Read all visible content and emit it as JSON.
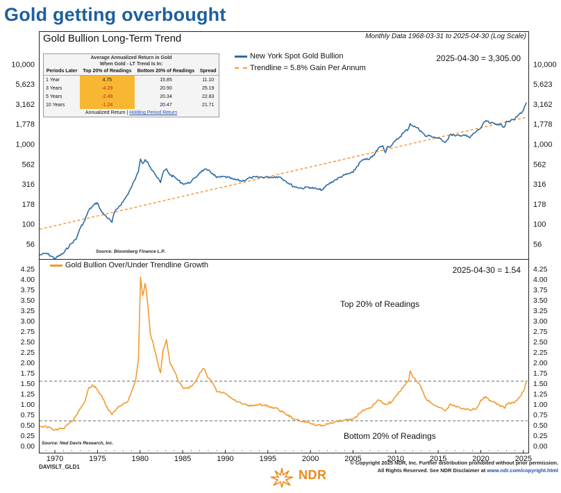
{
  "headline": "Gold getting overbought",
  "panel": {
    "title": "Gold Bullion Long-Term Trend",
    "subtitle": "Monthly Data 1968-03-31 to 2025-04-30 (Log Scale)"
  },
  "table": {
    "caption_line1": "Average Annualized Return in Gold",
    "caption_line2": "When Gold - LT Trend Is In:",
    "headers": [
      "Periods Later",
      "Top 20% of Readings",
      "Bottom 20% of Readings",
      "Spread"
    ],
    "rows": [
      {
        "period": "1 Year",
        "top": "4.75",
        "bottom": "15.85",
        "spread": "11.10"
      },
      {
        "period": "3 Years",
        "top": "-4.29",
        "bottom": "20.90",
        "spread": "25.19"
      },
      {
        "period": "5 Years",
        "top": "-2.49",
        "bottom": "20.34",
        "spread": "22.83"
      },
      {
        "period": "10 Years",
        "top": "-1.24",
        "bottom": "20.47",
        "spread": "21.71"
      }
    ],
    "footer_a": "Annualized Return",
    "footer_sep": "|",
    "footer_b": "Holding Period Return"
  },
  "colors": {
    "gold_line": "#2a6aa3",
    "trend": "#f29a3d",
    "osc": "#f2992e",
    "highlight": "#f7b733",
    "headline": "#1e5f9e"
  },
  "chart_data": [
    {
      "type": "line",
      "title": "Gold Bullion Long-Term Trend",
      "scale": "log",
      "xlim": [
        1968.2,
        2025.5
      ],
      "ylim": [
        38,
        15000
      ],
      "ytick_values": [
        56,
        100,
        178,
        316,
        562,
        1000,
        1778,
        3162,
        5623,
        10000
      ],
      "ytick_labels": [
        "56",
        "100",
        "178",
        "316",
        "562",
        "1,000",
        "1,778",
        "3,162",
        "5,623",
        "10,000"
      ],
      "legend": [
        "New York Spot Gold Bullion",
        "Trendline = 5.8% Gain Per Annum"
      ],
      "readout": "2025-04-30 = 3,305.00",
      "source": "Source: Bloomberg Finance L.P.",
      "series": [
        {
          "name": "New York Spot Gold Bullion",
          "x": [
            1968.2,
            1969,
            1970,
            1971,
            1972,
            1972.5,
            1973,
            1973.5,
            1974,
            1974.5,
            1974.95,
            1975.5,
            1976,
            1976.7,
            1977,
            1977.5,
            1978,
            1978.5,
            1979,
            1979.5,
            1979.8,
            1980.05,
            1980.3,
            1980.6,
            1980.9,
            1981.2,
            1981.6,
            1982,
            1982.4,
            1982.7,
            1983.1,
            1983.5,
            1984,
            1984.5,
            1985,
            1985.5,
            1986,
            1986.5,
            1987,
            1987.5,
            1987.9,
            1988.5,
            1989,
            1990,
            1991,
            1992,
            1993,
            1994,
            1995,
            1996,
            1996.5,
            1997,
            1998,
            1999,
            1999.8,
            2000,
            2001,
            2001.5,
            2002,
            2003,
            2004,
            2005,
            2006,
            2006.5,
            2007,
            2007.5,
            2008,
            2008.5,
            2008.8,
            2009,
            2009.5,
            2010,
            2010.5,
            2011,
            2011.5,
            2011.7,
            2012,
            2012.5,
            2013,
            2013.5,
            2014,
            2015,
            2015.9,
            2016.5,
            2017,
            2018,
            2018.7,
            2019,
            2019.5,
            2020,
            2020.6,
            2021,
            2022,
            2022.8,
            2023,
            2023.5,
            2024,
            2024.5,
            2025,
            2025.33
          ],
          "values": [
            41,
            43,
            37,
            43,
            58,
            65,
            90,
            110,
            150,
            170,
            185,
            140,
            125,
            105,
            140,
            165,
            190,
            230,
            290,
            380,
            450,
            650,
            570,
            640,
            600,
            510,
            450,
            380,
            330,
            440,
            490,
            410,
            390,
            350,
            320,
            320,
            340,
            380,
            440,
            480,
            470,
            430,
            380,
            390,
            360,
            345,
            380,
            385,
            385,
            390,
            385,
            350,
            295,
            280,
            290,
            285,
            270,
            270,
            310,
            360,
            410,
            440,
            620,
            640,
            660,
            730,
            900,
            950,
            780,
            920,
            950,
            1100,
            1230,
            1410,
            1550,
            1800,
            1690,
            1600,
            1450,
            1250,
            1270,
            1180,
            1060,
            1330,
            1260,
            1300,
            1200,
            1300,
            1450,
            1590,
            1970,
            1830,
            1780,
            1650,
            1930,
            1950,
            2060,
            2350,
            2630,
            3305
          ]
        },
        {
          "name": "Trendline = 5.8% Gain Per Annum",
          "x": [
            1968.2,
            2025.33
          ],
          "values": [
            86,
            2160
          ]
        }
      ]
    },
    {
      "type": "line",
      "title": "Gold Bullion Over/Under Trendline Growth",
      "xlim": [
        1968.2,
        2025.5
      ],
      "ylim": [
        -0.05,
        4.35
      ],
      "ytick_values": [
        0,
        0.25,
        0.5,
        0.75,
        1,
        1.25,
        1.5,
        1.75,
        2,
        2.25,
        2.5,
        2.75,
        3,
        3.25,
        3.5,
        3.75,
        4,
        4.25
      ],
      "ytick_labels": [
        "0.00",
        "0.25",
        "0.50",
        "0.75",
        "1.00",
        "1.25",
        "1.50",
        "1.75",
        "2.00",
        "2.25",
        "2.50",
        "2.75",
        "3.00",
        "3.25",
        "3.50",
        "3.75",
        "4.00",
        "4.25"
      ],
      "xtick_values": [
        1970,
        1975,
        1980,
        1985,
        1990,
        1995,
        2000,
        2005,
        2010,
        2015,
        2020,
        2025
      ],
      "xtick_labels": [
        "1970",
        "1975",
        "1980",
        "1985",
        "1990",
        "1995",
        "2000",
        "2005",
        "2010",
        "2015",
        "2020",
        "2025"
      ],
      "reference_lines": [
        1.55,
        0.6
      ],
      "annotations": {
        "top": "Top 20% of Readings",
        "bottom": "Bottom 20% of Readings"
      },
      "legend": [
        "Gold Bullion Over/Under Trendline Growth"
      ],
      "readout": "2025-04-30 = 1.54",
      "source": "Source: Ned Davis Research, Inc.",
      "series": [
        {
          "name": "Gold Bullion Over/Under Trendline Growth",
          "x": [
            1968.2,
            1969,
            1970,
            1971,
            1972,
            1973,
            1973.5,
            1974,
            1974.5,
            1974.95,
            1975.5,
            1976,
            1976.7,
            1977.5,
            1978.5,
            1979,
            1979.5,
            1979.8,
            1980.05,
            1980.3,
            1980.6,
            1980.9,
            1981.2,
            1981.6,
            1982,
            1982.4,
            1982.7,
            1983.1,
            1983.5,
            1984,
            1984.5,
            1985,
            1985.5,
            1986,
            1986.5,
            1987,
            1987.5,
            1987.9,
            1988.5,
            1989,
            1990,
            1991,
            1992,
            1993,
            1994,
            1995,
            1996,
            1997,
            1998,
            1999,
            1999.8,
            2000,
            2001,
            2001.5,
            2002,
            2003,
            2004,
            2005,
            2006,
            2007,
            2008,
            2008.8,
            2009.5,
            2010,
            2010.5,
            2011,
            2011.5,
            2011.7,
            2012,
            2012.5,
            2013,
            2013.5,
            2014,
            2015,
            2015.9,
            2016.5,
            2017,
            2018,
            2018.7,
            2019.5,
            2020,
            2020.6,
            2021,
            2022,
            2022.8,
            2023,
            2024,
            2024.5,
            2025,
            2025.33
          ],
          "values": [
            0.47,
            0.46,
            0.38,
            0.42,
            0.58,
            0.9,
            1.05,
            1.4,
            1.45,
            1.35,
            1.2,
            0.95,
            0.75,
            0.95,
            1.05,
            1.3,
            1.6,
            2.05,
            4.05,
            3.6,
            3.9,
            3.4,
            2.7,
            2.4,
            2.05,
            1.75,
            2.3,
            2.55,
            2.0,
            1.8,
            1.55,
            1.4,
            1.38,
            1.42,
            1.55,
            1.75,
            1.85,
            1.65,
            1.52,
            1.3,
            1.25,
            1.1,
            1.0,
            0.95,
            1.0,
            0.95,
            0.9,
            0.78,
            0.65,
            0.58,
            0.57,
            0.53,
            0.5,
            0.48,
            0.52,
            0.58,
            0.62,
            0.64,
            0.82,
            0.9,
            1.1,
            1.0,
            1.05,
            1.18,
            1.3,
            1.45,
            1.55,
            1.8,
            1.65,
            1.55,
            1.4,
            1.15,
            1.05,
            0.93,
            0.85,
            1.0,
            0.95,
            0.9,
            0.85,
            0.9,
            1.1,
            1.18,
            1.08,
            1.0,
            0.9,
            1.0,
            1.05,
            1.15,
            1.3,
            1.54
          ]
        }
      ]
    }
  ],
  "footer": {
    "code": "DAVISLT_GLD1",
    "copyright": "© Copyright 2025 NDR, Inc. Further distribution prohibited without prior permission.",
    "rights": "All Rights Reserved. See NDR Disclaimer at",
    "link": "www.ndr.com/copyright.html",
    "logo": "NDR"
  }
}
